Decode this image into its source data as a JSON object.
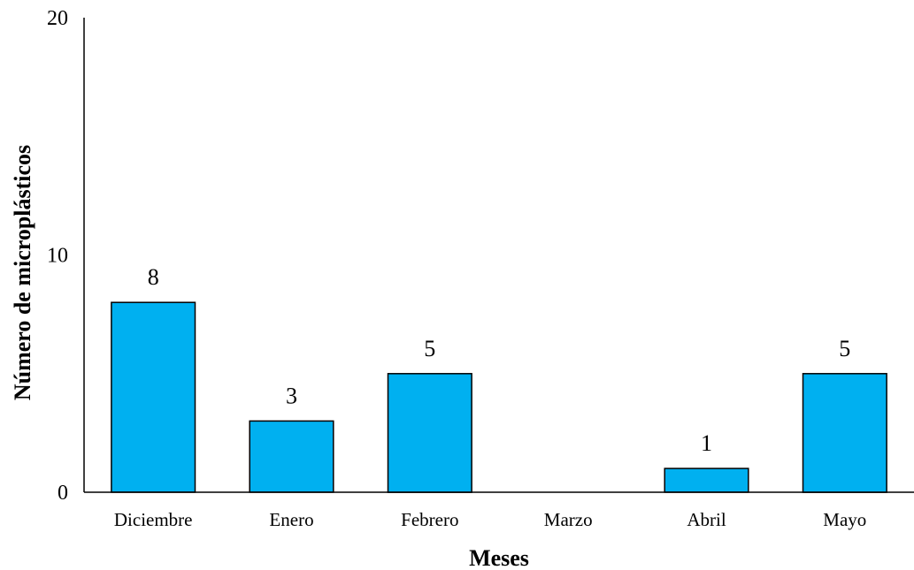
{
  "chart_data": {
    "type": "bar",
    "categories": [
      "Diciembre",
      "Enero",
      "Febrero",
      "Marzo",
      "Abril",
      "Mayo"
    ],
    "values": [
      8,
      3,
      5,
      0,
      1,
      5
    ],
    "data_labels": [
      "8",
      "3",
      "5",
      "",
      "1",
      "5"
    ],
    "xlabel": "Meses",
    "ylabel": "Número de microplásticos",
    "ylim": [
      0,
      20
    ],
    "yticks": [
      0,
      10,
      20
    ],
    "grid": false,
    "legend": "none",
    "colors": {
      "bar_fill": "#00B0F0",
      "bar_stroke": "#000000",
      "axis": "#000000"
    }
  }
}
